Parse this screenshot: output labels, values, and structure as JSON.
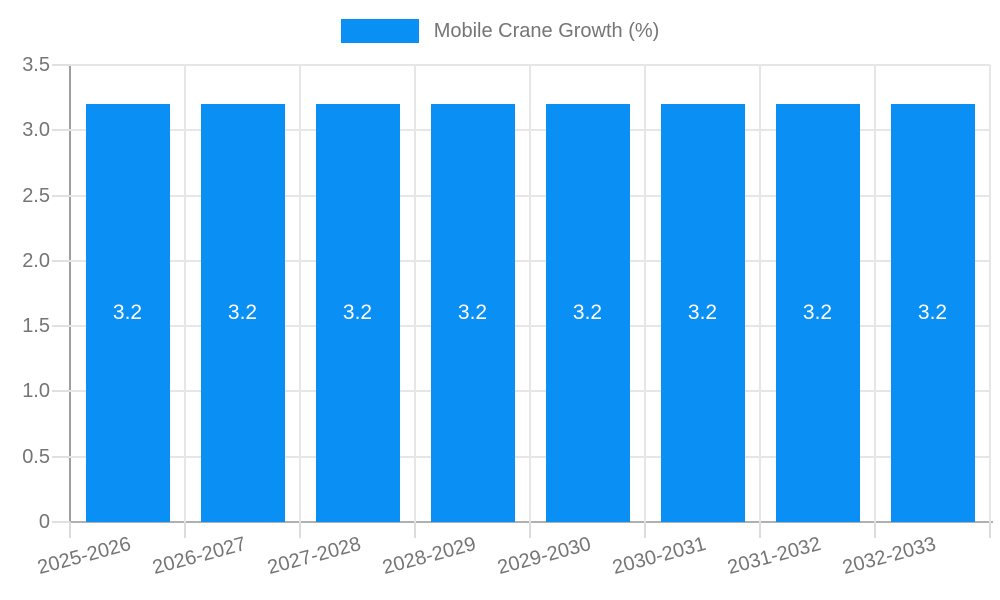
{
  "legend": {
    "label": "Mobile Crane Growth (%)"
  },
  "chart_data": {
    "type": "bar",
    "title": "",
    "xlabel": "",
    "ylabel": "",
    "categories": [
      "2025-2026",
      "2026-2027",
      "2027-2028",
      "2028-2029",
      "2029-2030",
      "2030-2031",
      "2031-2032",
      "2032-2033"
    ],
    "series": [
      {
        "name": "Mobile Crane Growth (%)",
        "values": [
          3.2,
          3.2,
          3.2,
          3.2,
          3.2,
          3.2,
          3.2,
          3.2
        ],
        "color": "#0a90f5"
      }
    ],
    "bar_labels": [
      "3.2",
      "3.2",
      "3.2",
      "3.2",
      "3.2",
      "3.2",
      "3.2",
      "3.2"
    ],
    "ylim": [
      0,
      3.5
    ],
    "ytick_step": 0.5,
    "ytick_labels": [
      "0",
      "0.5",
      "1.0",
      "1.5",
      "2.0",
      "2.5",
      "3.0",
      "3.5"
    ],
    "grid": true,
    "legend_position": "top-center",
    "colors": {
      "bar": "#0a90f5",
      "bar_label_text": "#ffffff",
      "axis_text": "#757575",
      "gridline": "#e6e6e6",
      "y_axis_line": "#9e9e9e",
      "x_axis_line": "#b0b0b0",
      "background": "#ffffff"
    }
  }
}
